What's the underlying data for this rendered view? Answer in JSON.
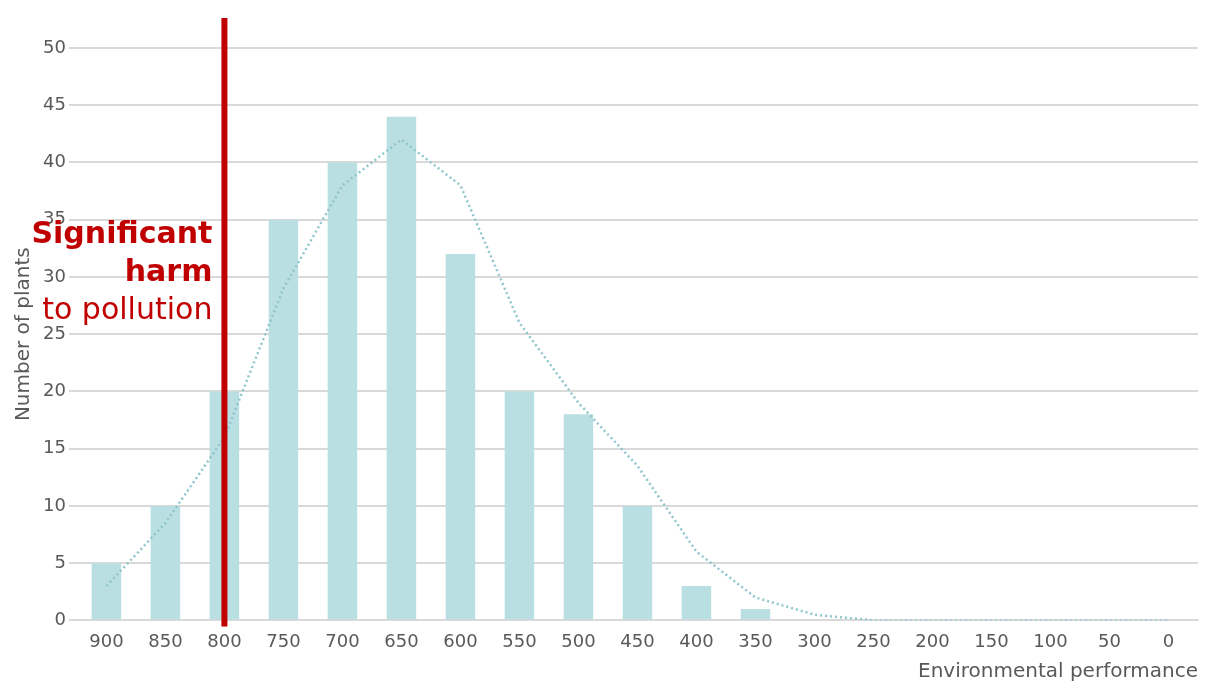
{
  "chart_data": {
    "type": "bar",
    "xlabel": "Environmental performance",
    "ylabel": "Number of plants",
    "categories": [
      "900",
      "850",
      "800",
      "750",
      "700",
      "650",
      "600",
      "550",
      "500",
      "450",
      "400",
      "350",
      "300",
      "250",
      "200",
      "150",
      "100",
      "50",
      "0"
    ],
    "series": [
      {
        "color": "#b9dfe3",
        "values": [
          5,
          10,
          20,
          35,
          40,
          44,
          32,
          20,
          18,
          10,
          3,
          1,
          0,
          0,
          0,
          0,
          0,
          0,
          0
        ]
      },
      {
        "type": "line",
        "color": "#8fc6cc",
        "line_style": "dotted",
        "marker": "none",
        "values": [
          3,
          8.5,
          16,
          29,
          38,
          42,
          38,
          26,
          19,
          13.5,
          6,
          2,
          0.5,
          0,
          0,
          0,
          0,
          0,
          0
        ]
      }
    ],
    "ylim": [
      0,
      50
    ],
    "yticks": [
      0,
      5,
      10,
      15,
      20,
      25,
      30,
      35,
      40,
      45,
      50
    ],
    "grid": "y",
    "legend": false,
    "ref_lines": [
      {
        "axis": "x",
        "value": "800",
        "label": "Significant harm to pollution",
        "color": "#c00000"
      }
    ]
  }
}
